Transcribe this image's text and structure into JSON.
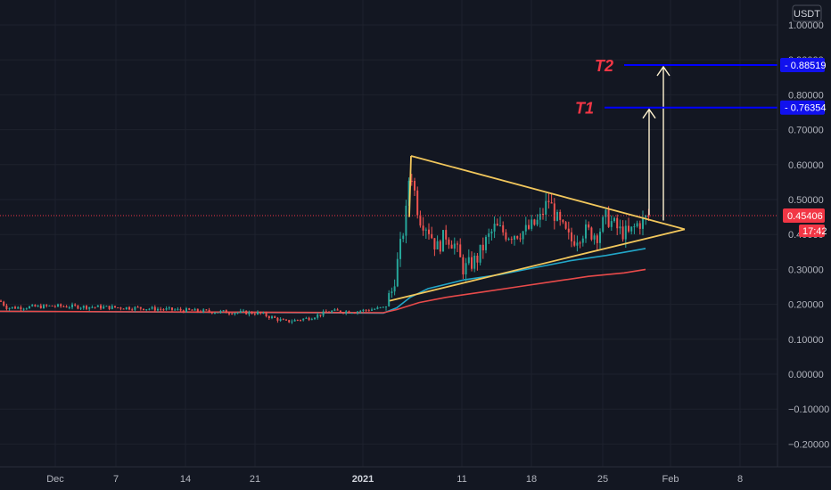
{
  "currency_label": "USDT",
  "current_price_label": "0.45406",
  "countdown_label": "17:42",
  "price_ticks": [
    "1.00000",
    "0.90000",
    "0.80000",
    "0.70000",
    "0.60000",
    "0.50000",
    "0.40000",
    "0.30000",
    "0.20000",
    "0.10000",
    "0.00000",
    "−0.10000",
    "−0.20000"
  ],
  "time_ticks": [
    {
      "label": "Dec",
      "bold": false
    },
    {
      "label": "7",
      "bold": false
    },
    {
      "label": "14",
      "bold": false
    },
    {
      "label": "21",
      "bold": false
    },
    {
      "label": "2021",
      "bold": true
    },
    {
      "label": "11",
      "bold": false
    },
    {
      "label": "18",
      "bold": false
    },
    {
      "label": "25",
      "bold": false
    },
    {
      "label": "Feb",
      "bold": false
    },
    {
      "label": "8",
      "bold": false
    }
  ],
  "colors": {
    "background": "#131722",
    "grid": "#1e222d",
    "up": "#26a69a",
    "down": "#ef5350",
    "triangle": "#f2c75c",
    "target_line": "#0000ff",
    "target_label_bg": "#1111ee",
    "target_text": "#f23645",
    "ma_fast": "#22a6c8",
    "ma_slow": "#e84a4a",
    "current_price_bg": "#f23645"
  },
  "annotations": [
    {
      "text": "T2",
      "price_label": "0.88519",
      "price": 0.88519
    },
    {
      "text": "T1",
      "price_label": "0.76354",
      "price": 0.76354
    }
  ],
  "chart_data": {
    "type": "candlestick",
    "ylim": [
      -0.22,
      1.03
    ],
    "y_ticks": [
      1.0,
      0.9,
      0.8,
      0.7,
      0.6,
      0.5,
      0.4,
      0.3,
      0.2,
      0.1,
      0.0,
      -0.1,
      -0.2
    ],
    "current_price": 0.45406,
    "series": [
      {
        "name": "price (approx. close path)",
        "anchors": [
          [
            0,
            0.21
          ],
          [
            8,
            0.19
          ],
          [
            60,
            0.195
          ],
          [
            150,
            0.19
          ],
          [
            230,
            0.18
          ],
          [
            290,
            0.175
          ],
          [
            320,
            0.15
          ],
          [
            345,
            0.16
          ],
          [
            370,
            0.18
          ],
          [
            400,
            0.18
          ],
          [
            430,
            0.19
          ],
          [
            440,
            0.24
          ],
          [
            448,
            0.35
          ],
          [
            455,
            0.45
          ],
          [
            460,
            0.6
          ],
          [
            463,
            0.55
          ],
          [
            470,
            0.45
          ],
          [
            480,
            0.42
          ],
          [
            490,
            0.36
          ],
          [
            500,
            0.4
          ],
          [
            510,
            0.37
          ],
          [
            520,
            0.3
          ],
          [
            535,
            0.33
          ],
          [
            545,
            0.38
          ],
          [
            555,
            0.42
          ],
          [
            570,
            0.4
          ],
          [
            590,
            0.41
          ],
          [
            605,
            0.44
          ],
          [
            615,
            0.5
          ],
          [
            625,
            0.44
          ],
          [
            640,
            0.38
          ],
          [
            655,
            0.41
          ],
          [
            670,
            0.4
          ],
          [
            680,
            0.45
          ],
          [
            695,
            0.41
          ],
          [
            705,
            0.4
          ],
          [
            715,
            0.43
          ],
          [
            722,
            0.44
          ],
          [
            728,
            0.45
          ]
        ]
      },
      {
        "name": "moving average (teal)",
        "anchors": [
          [
            0,
            0.18
          ],
          [
            430,
            0.175
          ],
          [
            445,
            0.19
          ],
          [
            460,
            0.22
          ],
          [
            480,
            0.245
          ],
          [
            520,
            0.27
          ],
          [
            560,
            0.285
          ],
          [
            600,
            0.305
          ],
          [
            640,
            0.325
          ],
          [
            680,
            0.34
          ],
          [
            724,
            0.36
          ]
        ]
      },
      {
        "name": "moving average (red)",
        "anchors": [
          [
            0,
            0.18
          ],
          [
            430,
            0.176
          ],
          [
            445,
            0.185
          ],
          [
            470,
            0.205
          ],
          [
            500,
            0.22
          ],
          [
            540,
            0.235
          ],
          [
            580,
            0.25
          ],
          [
            620,
            0.265
          ],
          [
            660,
            0.28
          ],
          [
            700,
            0.29
          ],
          [
            724,
            0.3
          ]
        ]
      }
    ],
    "triangle_pattern": {
      "apex_high": {
        "date": "early Jan 2021",
        "price": 0.625
      },
      "lower_start": {
        "date": "start Jan 2021",
        "price": 0.21
      },
      "apex": {
        "date": "early Feb 2021",
        "price": 0.415
      }
    },
    "targets": [
      {
        "label": "T1",
        "price": 0.76354
      },
      {
        "label": "T2",
        "price": 0.88519
      }
    ]
  }
}
